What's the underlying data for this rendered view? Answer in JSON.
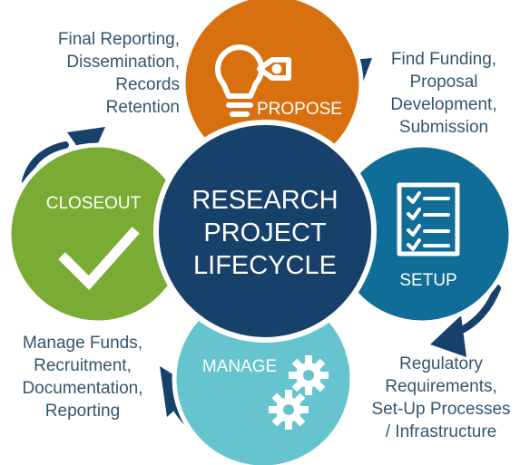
{
  "center": {
    "lines": [
      "RESEARCH",
      "PROJECT",
      "LIFECYCLE"
    ]
  },
  "phases": {
    "propose": {
      "label": "PROPOSE",
      "color": "#d9700f",
      "icon": "lightbulb-tag-icon"
    },
    "setup": {
      "label": "SETUP",
      "color": "#0f6d98",
      "icon": "checklist-icon"
    },
    "manage": {
      "label": "MANAGE",
      "color": "#66c4cf",
      "icon": "gears-icon"
    },
    "closeout": {
      "label": "CLOSEOUT",
      "color": "#7aab35",
      "icon": "checkmark-icon"
    }
  },
  "annotations": {
    "closeout": [
      "Final Reporting,",
      "Dissemination,",
      "Records",
      "Retention"
    ],
    "propose": [
      "Find Funding,",
      "Proposal",
      "Development,",
      "Submission"
    ],
    "setup": [
      "Regulatory",
      "Requirements,",
      "Set-Up Processes",
      "/ Infrastructure"
    ],
    "manage": [
      "Manage Funds,",
      "Recruitment,",
      "Documentation,",
      "Reporting"
    ]
  },
  "colors": {
    "navy": "#17406b",
    "text": "#33566e",
    "white": "#ffffff"
  }
}
